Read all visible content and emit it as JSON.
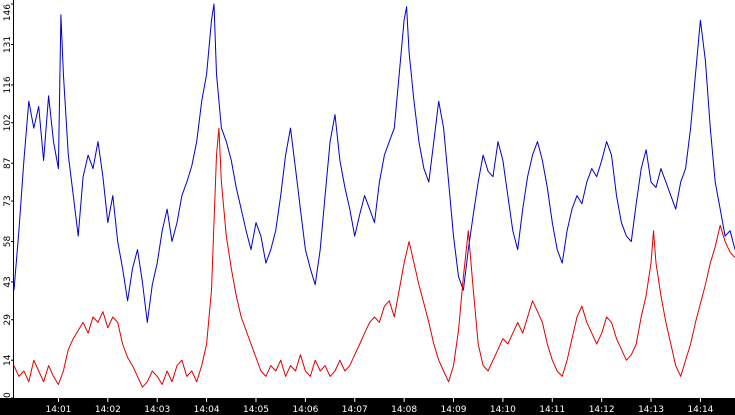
{
  "chart_data": {
    "type": "line",
    "title": "",
    "xlabel": "",
    "ylabel": "",
    "ylim": [
      0,
      146
    ],
    "y_ticks": [
      "0",
      "14",
      "29",
      "43",
      "58",
      "73",
      "87",
      "102",
      "116",
      "131",
      "146"
    ],
    "x_ticks": [
      "14:01",
      "14:02",
      "14:03",
      "14:04",
      "14:05",
      "14:06",
      "14:07",
      "14:08",
      "14:09",
      "14:10",
      "14:11",
      "14:12",
      "14:13",
      "14:14"
    ],
    "x_tick_positions": [
      1,
      2,
      3,
      4,
      5,
      6,
      7,
      8,
      9,
      10,
      11,
      12,
      13,
      14
    ],
    "x_range": [
      0.1,
      14.7
    ],
    "x_unit": "minutes past 14:00",
    "grid": false,
    "series": [
      {
        "color": "#0000cc",
        "points": [
          [
            0.1,
            40
          ],
          [
            0.2,
            62
          ],
          [
            0.3,
            88
          ],
          [
            0.4,
            110
          ],
          [
            0.5,
            100
          ],
          [
            0.6,
            108
          ],
          [
            0.7,
            88
          ],
          [
            0.8,
            112
          ],
          [
            0.9,
            95
          ],
          [
            1.0,
            85
          ],
          [
            1.05,
            142
          ],
          [
            1.1,
            120
          ],
          [
            1.2,
            90
          ],
          [
            1.3,
            75
          ],
          [
            1.4,
            60
          ],
          [
            1.5,
            82
          ],
          [
            1.6,
            90
          ],
          [
            1.7,
            85
          ],
          [
            1.8,
            95
          ],
          [
            1.9,
            82
          ],
          [
            2.0,
            65
          ],
          [
            2.1,
            75
          ],
          [
            2.2,
            58
          ],
          [
            2.3,
            48
          ],
          [
            2.4,
            36
          ],
          [
            2.5,
            48
          ],
          [
            2.6,
            55
          ],
          [
            2.7,
            43
          ],
          [
            2.8,
            28
          ],
          [
            2.9,
            42
          ],
          [
            3.0,
            50
          ],
          [
            3.1,
            62
          ],
          [
            3.2,
            70
          ],
          [
            3.3,
            58
          ],
          [
            3.4,
            65
          ],
          [
            3.5,
            75
          ],
          [
            3.6,
            80
          ],
          [
            3.7,
            86
          ],
          [
            3.8,
            95
          ],
          [
            3.9,
            110
          ],
          [
            4.0,
            120
          ],
          [
            4.1,
            140
          ],
          [
            4.15,
            146
          ],
          [
            4.2,
            120
          ],
          [
            4.3,
            100
          ],
          [
            4.4,
            95
          ],
          [
            4.5,
            88
          ],
          [
            4.6,
            78
          ],
          [
            4.7,
            70
          ],
          [
            4.8,
            62
          ],
          [
            4.9,
            55
          ],
          [
            5.0,
            65
          ],
          [
            5.1,
            60
          ],
          [
            5.2,
            50
          ],
          [
            5.3,
            55
          ],
          [
            5.4,
            62
          ],
          [
            5.5,
            75
          ],
          [
            5.6,
            90
          ],
          [
            5.7,
            100
          ],
          [
            5.8,
            85
          ],
          [
            5.9,
            70
          ],
          [
            6.0,
            55
          ],
          [
            6.1,
            48
          ],
          [
            6.2,
            42
          ],
          [
            6.3,
            55
          ],
          [
            6.4,
            75
          ],
          [
            6.5,
            95
          ],
          [
            6.6,
            105
          ],
          [
            6.7,
            88
          ],
          [
            6.8,
            78
          ],
          [
            6.9,
            70
          ],
          [
            7.0,
            60
          ],
          [
            7.1,
            68
          ],
          [
            7.2,
            75
          ],
          [
            7.3,
            70
          ],
          [
            7.4,
            65
          ],
          [
            7.5,
            80
          ],
          [
            7.6,
            90
          ],
          [
            7.7,
            95
          ],
          [
            7.8,
            100
          ],
          [
            7.9,
            120
          ],
          [
            8.0,
            140
          ],
          [
            8.05,
            145
          ],
          [
            8.1,
            128
          ],
          [
            8.2,
            110
          ],
          [
            8.3,
            95
          ],
          [
            8.4,
            85
          ],
          [
            8.5,
            80
          ],
          [
            8.6,
            95
          ],
          [
            8.7,
            110
          ],
          [
            8.8,
            100
          ],
          [
            8.9,
            80
          ],
          [
            9.0,
            60
          ],
          [
            9.1,
            45
          ],
          [
            9.2,
            40
          ],
          [
            9.3,
            55
          ],
          [
            9.4,
            68
          ],
          [
            9.5,
            80
          ],
          [
            9.6,
            90
          ],
          [
            9.7,
            84
          ],
          [
            9.8,
            82
          ],
          [
            9.9,
            95
          ],
          [
            10.0,
            88
          ],
          [
            10.1,
            75
          ],
          [
            10.2,
            62
          ],
          [
            10.3,
            55
          ],
          [
            10.4,
            70
          ],
          [
            10.5,
            82
          ],
          [
            10.6,
            90
          ],
          [
            10.7,
            95
          ],
          [
            10.8,
            88
          ],
          [
            10.9,
            78
          ],
          [
            11.0,
            65
          ],
          [
            11.1,
            55
          ],
          [
            11.2,
            50
          ],
          [
            11.3,
            62
          ],
          [
            11.4,
            70
          ],
          [
            11.5,
            75
          ],
          [
            11.6,
            72
          ],
          [
            11.7,
            80
          ],
          [
            11.8,
            85
          ],
          [
            11.9,
            82
          ],
          [
            12.0,
            88
          ],
          [
            12.1,
            95
          ],
          [
            12.2,
            90
          ],
          [
            12.3,
            75
          ],
          [
            12.4,
            65
          ],
          [
            12.5,
            60
          ],
          [
            12.6,
            58
          ],
          [
            12.7,
            72
          ],
          [
            12.8,
            85
          ],
          [
            12.9,
            92
          ],
          [
            13.0,
            80
          ],
          [
            13.1,
            78
          ],
          [
            13.2,
            85
          ],
          [
            13.3,
            80
          ],
          [
            13.4,
            75
          ],
          [
            13.5,
            70
          ],
          [
            13.6,
            80
          ],
          [
            13.7,
            85
          ],
          [
            13.8,
            100
          ],
          [
            13.9,
            120
          ],
          [
            14.0,
            140
          ],
          [
            14.1,
            125
          ],
          [
            14.2,
            100
          ],
          [
            14.3,
            80
          ],
          [
            14.4,
            70
          ],
          [
            14.5,
            60
          ],
          [
            14.6,
            62
          ],
          [
            14.7,
            55
          ]
        ]
      },
      {
        "color": "#dd0000",
        "points": [
          [
            0.1,
            12
          ],
          [
            0.2,
            8
          ],
          [
            0.3,
            10
          ],
          [
            0.4,
            6
          ],
          [
            0.5,
            14
          ],
          [
            0.6,
            10
          ],
          [
            0.7,
            6
          ],
          [
            0.8,
            12
          ],
          [
            0.9,
            8
          ],
          [
            1.0,
            5
          ],
          [
            1.1,
            10
          ],
          [
            1.2,
            18
          ],
          [
            1.3,
            22
          ],
          [
            1.4,
            25
          ],
          [
            1.5,
            28
          ],
          [
            1.6,
            24
          ],
          [
            1.7,
            30
          ],
          [
            1.8,
            28
          ],
          [
            1.9,
            32
          ],
          [
            2.0,
            26
          ],
          [
            2.1,
            30
          ],
          [
            2.2,
            28
          ],
          [
            2.3,
            20
          ],
          [
            2.4,
            15
          ],
          [
            2.5,
            12
          ],
          [
            2.6,
            8
          ],
          [
            2.7,
            4
          ],
          [
            2.8,
            6
          ],
          [
            2.9,
            10
          ],
          [
            3.0,
            8
          ],
          [
            3.1,
            5
          ],
          [
            3.2,
            10
          ],
          [
            3.3,
            6
          ],
          [
            3.4,
            12
          ],
          [
            3.5,
            14
          ],
          [
            3.6,
            8
          ],
          [
            3.7,
            10
          ],
          [
            3.8,
            6
          ],
          [
            3.9,
            12
          ],
          [
            4.0,
            20
          ],
          [
            4.1,
            40
          ],
          [
            4.15,
            65
          ],
          [
            4.2,
            90
          ],
          [
            4.25,
            100
          ],
          [
            4.3,
            80
          ],
          [
            4.4,
            60
          ],
          [
            4.5,
            48
          ],
          [
            4.6,
            38
          ],
          [
            4.7,
            30
          ],
          [
            4.8,
            25
          ],
          [
            4.9,
            20
          ],
          [
            5.0,
            15
          ],
          [
            5.1,
            10
          ],
          [
            5.2,
            8
          ],
          [
            5.3,
            12
          ],
          [
            5.4,
            10
          ],
          [
            5.5,
            14
          ],
          [
            5.6,
            8
          ],
          [
            5.7,
            12
          ],
          [
            5.8,
            10
          ],
          [
            5.9,
            16
          ],
          [
            6.0,
            10
          ],
          [
            6.1,
            8
          ],
          [
            6.2,
            14
          ],
          [
            6.3,
            10
          ],
          [
            6.4,
            12
          ],
          [
            6.5,
            8
          ],
          [
            6.6,
            10
          ],
          [
            6.7,
            14
          ],
          [
            6.8,
            10
          ],
          [
            6.9,
            12
          ],
          [
            7.0,
            16
          ],
          [
            7.1,
            20
          ],
          [
            7.2,
            24
          ],
          [
            7.3,
            28
          ],
          [
            7.4,
            30
          ],
          [
            7.5,
            28
          ],
          [
            7.6,
            34
          ],
          [
            7.7,
            36
          ],
          [
            7.8,
            30
          ],
          [
            7.9,
            40
          ],
          [
            8.0,
            50
          ],
          [
            8.1,
            58
          ],
          [
            8.2,
            50
          ],
          [
            8.3,
            42
          ],
          [
            8.4,
            35
          ],
          [
            8.5,
            28
          ],
          [
            8.6,
            20
          ],
          [
            8.7,
            14
          ],
          [
            8.8,
            10
          ],
          [
            8.9,
            6
          ],
          [
            9.0,
            12
          ],
          [
            9.1,
            25
          ],
          [
            9.2,
            45
          ],
          [
            9.3,
            62
          ],
          [
            9.4,
            40
          ],
          [
            9.5,
            20
          ],
          [
            9.6,
            12
          ],
          [
            9.7,
            10
          ],
          [
            9.8,
            14
          ],
          [
            9.9,
            18
          ],
          [
            10.0,
            22
          ],
          [
            10.1,
            20
          ],
          [
            10.2,
            24
          ],
          [
            10.3,
            28
          ],
          [
            10.4,
            24
          ],
          [
            10.5,
            30
          ],
          [
            10.6,
            36
          ],
          [
            10.7,
            32
          ],
          [
            10.8,
            28
          ],
          [
            10.9,
            20
          ],
          [
            11.0,
            14
          ],
          [
            11.1,
            10
          ],
          [
            11.2,
            8
          ],
          [
            11.3,
            14
          ],
          [
            11.4,
            22
          ],
          [
            11.5,
            30
          ],
          [
            11.6,
            34
          ],
          [
            11.7,
            28
          ],
          [
            11.8,
            24
          ],
          [
            11.9,
            20
          ],
          [
            12.0,
            24
          ],
          [
            12.1,
            30
          ],
          [
            12.2,
            28
          ],
          [
            12.3,
            22
          ],
          [
            12.4,
            18
          ],
          [
            12.5,
            14
          ],
          [
            12.6,
            16
          ],
          [
            12.7,
            20
          ],
          [
            12.8,
            30
          ],
          [
            12.9,
            38
          ],
          [
            13.0,
            50
          ],
          [
            13.05,
            62
          ],
          [
            13.1,
            50
          ],
          [
            13.2,
            38
          ],
          [
            13.3,
            28
          ],
          [
            13.4,
            20
          ],
          [
            13.5,
            12
          ],
          [
            13.6,
            8
          ],
          [
            13.7,
            14
          ],
          [
            13.8,
            20
          ],
          [
            13.9,
            28
          ],
          [
            14.0,
            35
          ],
          [
            14.1,
            42
          ],
          [
            14.2,
            50
          ],
          [
            14.3,
            56
          ],
          [
            14.4,
            64
          ],
          [
            14.5,
            58
          ],
          [
            14.6,
            54
          ],
          [
            14.7,
            52
          ]
        ]
      }
    ]
  }
}
